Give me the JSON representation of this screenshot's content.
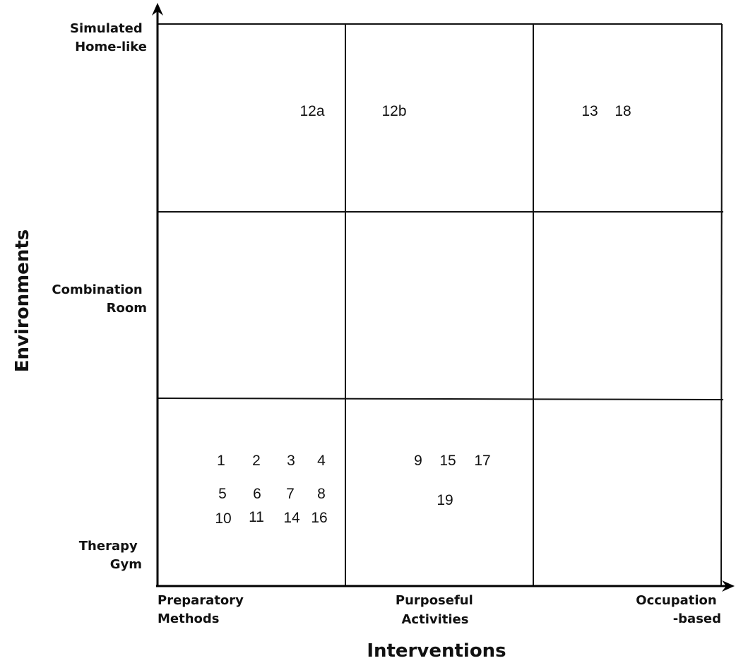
{
  "diagram": {
    "x_axis": {
      "title": "Interventions",
      "categories": [
        [
          "Preparatory",
          "Methods"
        ],
        [
          "Purposeful",
          "Activities"
        ],
        [
          "Occupation",
          "-based"
        ]
      ]
    },
    "y_axis": {
      "title": "Environments",
      "categories": [
        [
          "Simulated",
          "Home-like"
        ],
        [
          "Combination",
          "Room"
        ],
        [
          "Therapy",
          "Gym"
        ]
      ]
    },
    "study_labels": [
      "12a",
      "12b",
      "13",
      "18",
      "1",
      "2",
      "3",
      "4",
      "5",
      "6",
      "7",
      "8",
      "10",
      "11",
      "14",
      "16",
      "9",
      "15",
      "17",
      "19"
    ]
  }
}
